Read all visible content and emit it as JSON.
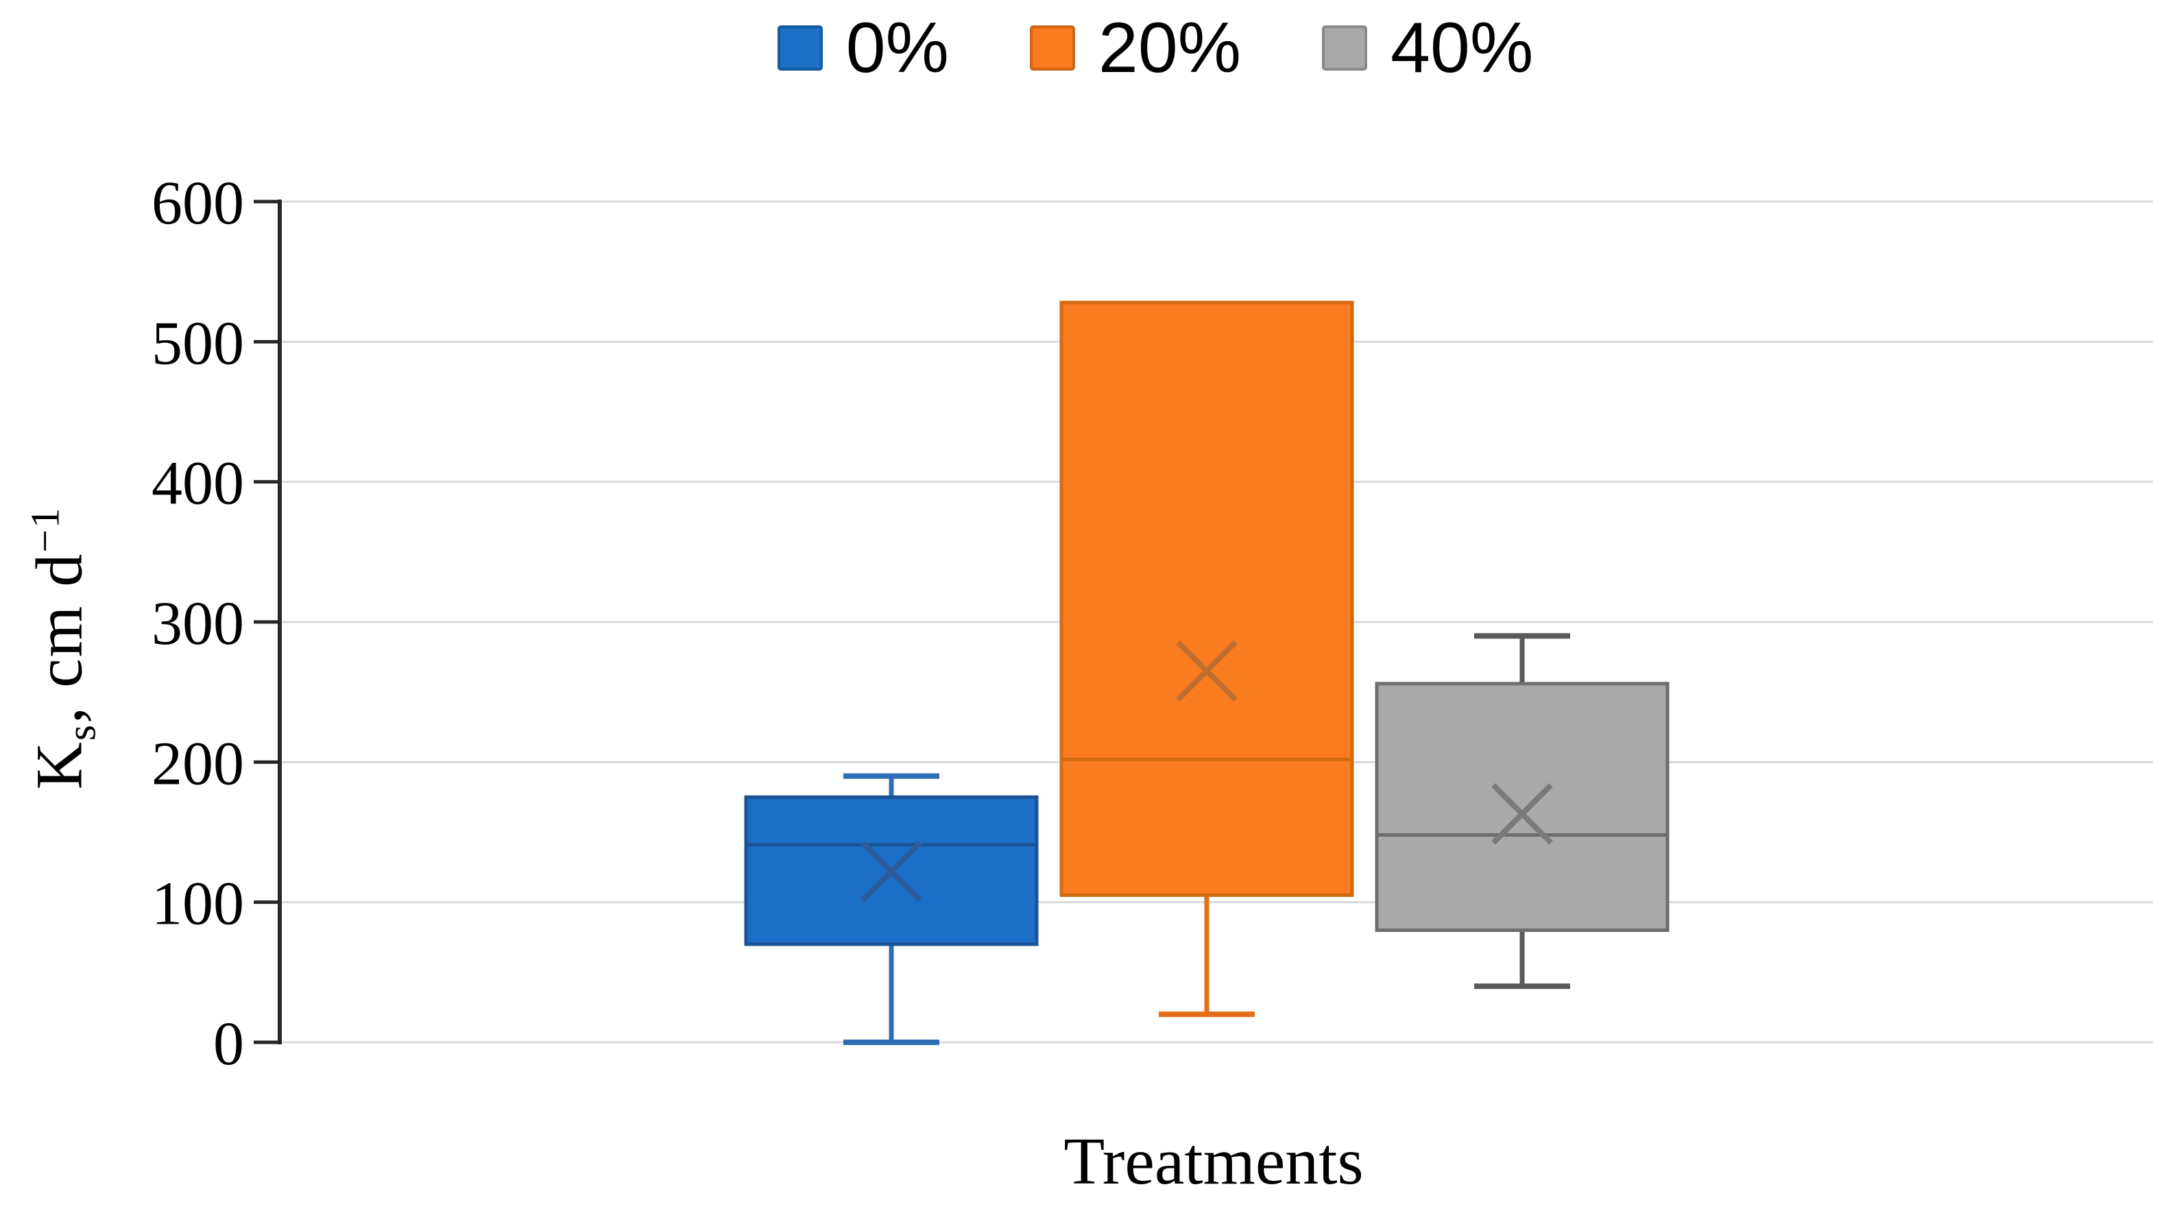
{
  "style": {
    "background": "#FFFFFF",
    "gridline_color": "#D9D9D9",
    "axis_color": "#262626",
    "text_color": "#000000"
  },
  "legend": {
    "position": "top-center",
    "items": [
      {
        "label": "0%"
      },
      {
        "label": "20%"
      },
      {
        "label": "40%"
      }
    ]
  },
  "axes": {
    "y_title": {
      "base": "K",
      "sub": "s",
      "mid": ", cm d",
      "sup": "−1"
    },
    "x_title": "Treatments",
    "y_ticks": [
      0,
      100,
      200,
      300,
      400,
      500,
      600
    ],
    "y_range": [
      0,
      600
    ],
    "gridlines": true
  },
  "chart_data": {
    "type": "boxplot",
    "title": "",
    "xlabel": "Treatments",
    "ylabel": "Ks, cm d−1",
    "ylim": [
      0,
      600
    ],
    "categories": [
      "Treatments"
    ],
    "legend_position": "top",
    "grid": true,
    "series": [
      {
        "name": "0%",
        "min": 0,
        "q1": 70,
        "median": 141,
        "mean": 122,
        "q3": 175,
        "max": 190,
        "fill": "#1B6FC6",
        "border": "#1A5396",
        "whisker": "#2E6DB3",
        "mean_color": "#2C5C9E"
      },
      {
        "name": "20%",
        "min": 20,
        "q1": 105,
        "median": 202,
        "mean": 265,
        "q3": 528,
        "max": 528,
        "fill": "#FA7C21",
        "border": "#D2690F",
        "whisker": "#E56F16",
        "mean_color": "#C06F30"
      },
      {
        "name": "40%",
        "min": 40,
        "q1": 80,
        "median": 148,
        "mean": 163,
        "q3": 256,
        "max": 290,
        "fill": "#A9A9A9",
        "border": "#6D6D6D",
        "whisker": "#595959",
        "mean_color": "#7A7A7A"
      }
    ]
  }
}
